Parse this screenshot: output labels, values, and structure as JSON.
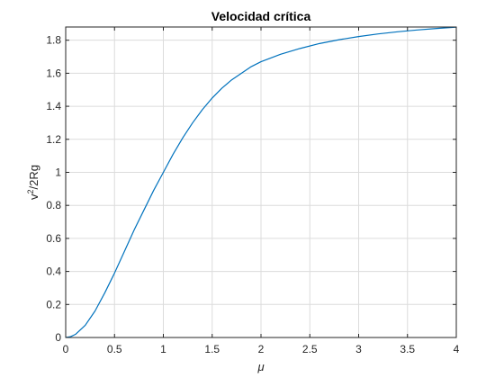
{
  "chart_data": {
    "type": "line",
    "title": "Velocidad crítica",
    "xlabel": "μ",
    "ylabel_base": "v",
    "ylabel_superscript": "2",
    "ylabel_tail": "/2Rg",
    "xlim": [
      0,
      4
    ],
    "ylim": [
      0,
      1.88
    ],
    "x_ticks": [
      "0",
      "0.5",
      "1",
      "1.5",
      "2",
      "2.5",
      "3",
      "3.5",
      "4"
    ],
    "y_ticks": [
      "0",
      "0.2",
      "0.4",
      "0.6",
      "0.8",
      "1",
      "1.2",
      "1.4",
      "1.6",
      "1.8"
    ],
    "grid": true,
    "series": [
      {
        "color": "#0072bd",
        "x": [
          0,
          0.05,
          0.1,
          0.2,
          0.3,
          0.4,
          0.5,
          0.6,
          0.7,
          0.8,
          0.9,
          1.0,
          1.1,
          1.2,
          1.3,
          1.4,
          1.5,
          1.6,
          1.7,
          1.8,
          1.9,
          2.0,
          2.2,
          2.4,
          2.6,
          2.8,
          3.0,
          3.2,
          3.4,
          3.6,
          3.8,
          4.0
        ],
        "y": [
          0,
          0.005,
          0.019,
          0.074,
          0.16,
          0.27,
          0.39,
          0.52,
          0.65,
          0.77,
          0.89,
          1.0,
          1.11,
          1.21,
          1.3,
          1.38,
          1.45,
          1.51,
          1.56,
          1.6,
          1.64,
          1.67,
          1.715,
          1.75,
          1.78,
          1.803,
          1.822,
          1.838,
          1.851,
          1.862,
          1.871,
          1.879
        ]
      }
    ]
  }
}
